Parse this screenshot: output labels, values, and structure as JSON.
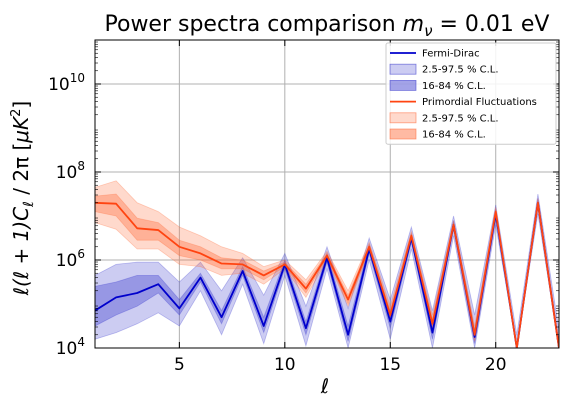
{
  "chart_data": {
    "type": "line",
    "title": "Power spectra comparison m_ν = 0.01 eV",
    "title_parts": {
      "prefix": "Power spectra comparison ",
      "m": "m",
      "nu": "ν",
      "eq": " = 0.01 eV"
    },
    "xlabel": "ℓ",
    "ylabel": "ℓ(ℓ + 1)C_ℓ / 2π [μK²]",
    "ylabel_parts": {
      "a": "ℓ(ℓ + 1)",
      "c": "C",
      "sub": "ℓ",
      "b": " / 2π [",
      "mu": "μK",
      "sup": "2",
      "end": "]"
    },
    "xlim": [
      1,
      23
    ],
    "ylim_log10": [
      4,
      11
    ],
    "x_ticks": [
      5,
      10,
      15,
      20
    ],
    "y_ticks": [
      {
        "base": "10",
        "exp": "4",
        "log": 4
      },
      {
        "base": "10",
        "exp": "6",
        "log": 6
      },
      {
        "base": "10",
        "exp": "8",
        "log": 8
      },
      {
        "base": "10",
        "exp": "10",
        "log": 10
      }
    ],
    "grid": true,
    "legend_position": "top-right",
    "x": [
      1,
      2,
      3,
      4,
      5,
      6,
      7,
      8,
      9,
      10,
      11,
      12,
      13,
      14,
      15,
      16,
      17,
      18,
      19,
      20,
      21,
      22,
      23
    ],
    "series": [
      {
        "name": "Fermi-Dirac",
        "color": "#0000cc",
        "band_color": "#3333cc",
        "median_log10": [
          4.85,
          5.15,
          5.25,
          5.45,
          4.9,
          5.6,
          4.7,
          5.75,
          4.5,
          5.9,
          4.45,
          6.05,
          4.3,
          6.25,
          4.6,
          6.5,
          4.35,
          6.8,
          4.25,
          7.05,
          3.8,
          7.3,
          3.9
        ],
        "inner_lower_log10": [
          4.5,
          4.75,
          4.95,
          5.25,
          4.75,
          5.5,
          4.55,
          5.65,
          4.35,
          5.8,
          4.3,
          5.95,
          4.15,
          6.15,
          4.45,
          6.4,
          4.2,
          6.7,
          4.1,
          6.95,
          3.6,
          7.2,
          3.7
        ],
        "inner_upper_log10": [
          5.4,
          5.5,
          5.65,
          5.65,
          5.1,
          5.7,
          4.85,
          5.85,
          4.7,
          6.0,
          4.6,
          6.15,
          4.5,
          6.35,
          4.75,
          6.6,
          4.5,
          6.9,
          4.4,
          7.15,
          4.0,
          7.4,
          4.1
        ],
        "outer_lower_log10": [
          4.2,
          4.35,
          4.55,
          4.8,
          4.5,
          5.3,
          4.3,
          5.45,
          4.1,
          5.65,
          4.05,
          5.8,
          3.9,
          6.0,
          4.2,
          6.25,
          3.95,
          6.55,
          3.85,
          6.8,
          3.3,
          7.05,
          3.4
        ],
        "outer_upper_log10": [
          5.65,
          5.9,
          5.95,
          5.95,
          5.5,
          5.95,
          5.3,
          6.05,
          5.2,
          6.15,
          4.95,
          6.3,
          4.9,
          6.5,
          5.1,
          6.75,
          4.85,
          7.0,
          4.75,
          7.25,
          4.3,
          7.5,
          4.4
        ]
      },
      {
        "name": "Primordial Fluctuations",
        "color": "#ff4411",
        "band_color": "#ff6633",
        "median_log10": [
          7.3,
          7.28,
          6.72,
          6.68,
          6.3,
          6.15,
          5.92,
          5.9,
          5.65,
          5.9,
          5.35,
          6.1,
          5.1,
          6.3,
          4.75,
          6.55,
          4.55,
          6.8,
          4.3,
          7.1,
          3.85,
          7.3,
          3.95
        ],
        "inner_lower_log10": [
          7.1,
          7.0,
          6.45,
          6.45,
          6.1,
          6.0,
          5.8,
          5.8,
          5.55,
          5.85,
          5.25,
          6.05,
          5.0,
          6.25,
          4.65,
          6.5,
          4.45,
          6.75,
          4.2,
          7.05,
          3.75,
          7.25,
          3.85
        ],
        "inner_upper_log10": [
          7.45,
          7.5,
          6.95,
          6.85,
          6.45,
          6.3,
          6.05,
          6.0,
          5.75,
          5.95,
          5.45,
          6.15,
          5.2,
          6.35,
          4.85,
          6.6,
          4.65,
          6.85,
          4.4,
          7.15,
          3.95,
          7.35,
          4.05
        ],
        "outer_lower_log10": [
          6.85,
          6.7,
          6.25,
          6.25,
          5.9,
          5.85,
          5.65,
          5.7,
          5.45,
          5.8,
          5.15,
          6.0,
          4.95,
          6.2,
          4.6,
          6.45,
          4.4,
          6.7,
          4.15,
          7.0,
          3.7,
          7.2,
          3.8
        ],
        "outer_upper_log10": [
          7.65,
          7.8,
          7.3,
          7.1,
          6.75,
          6.55,
          6.3,
          6.15,
          5.85,
          6.0,
          5.55,
          6.2,
          5.3,
          6.4,
          4.95,
          6.65,
          4.75,
          6.9,
          4.5,
          7.2,
          4.05,
          7.4,
          4.15
        ]
      }
    ],
    "legend": [
      {
        "label": "Fermi-Dirac",
        "kind": "line",
        "color": "#0000cc"
      },
      {
        "label": "2.5-97.5 % C.L.",
        "kind": "patch",
        "color": "#3333cc",
        "opacity": 0.25
      },
      {
        "label": "16-84 % C.L.",
        "kind": "patch",
        "color": "#3333cc",
        "opacity": 0.45
      },
      {
        "label": "Primordial Fluctuations",
        "kind": "line",
        "color": "#ff4411"
      },
      {
        "label": "2.5-97.5 % C.L.",
        "kind": "patch",
        "color": "#ff6633",
        "opacity": 0.25
      },
      {
        "label": "16-84 % C.L.",
        "kind": "patch",
        "color": "#ff6633",
        "opacity": 0.45
      }
    ]
  }
}
